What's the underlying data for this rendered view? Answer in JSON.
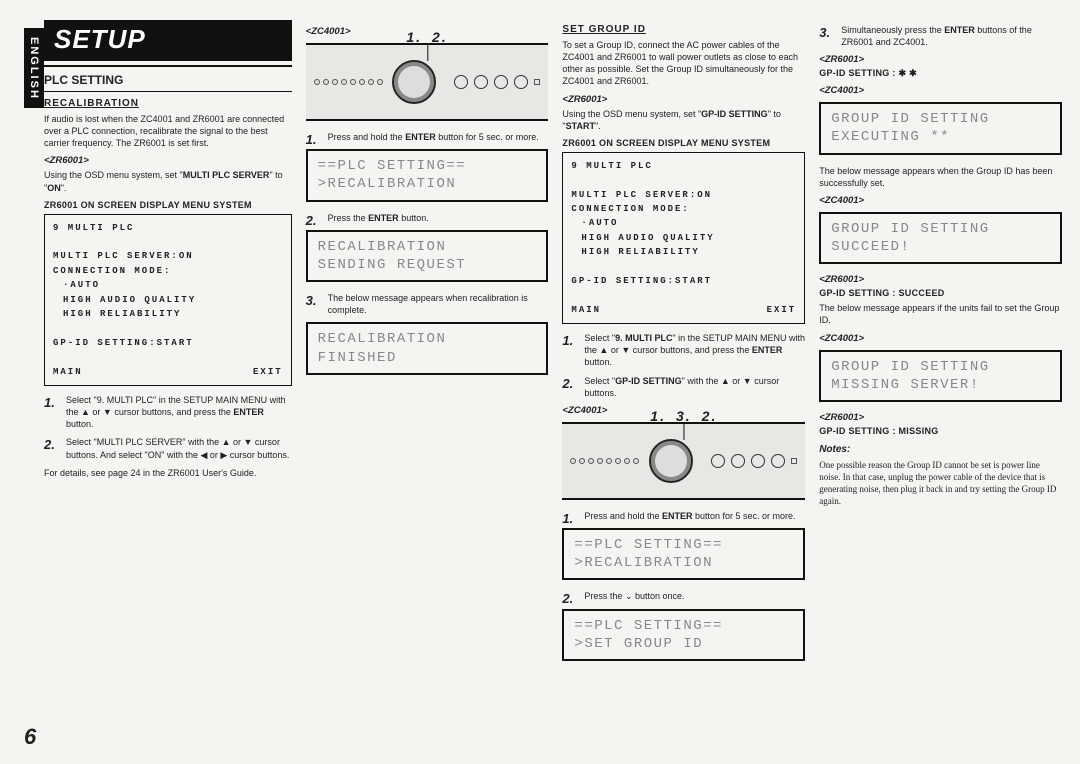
{
  "language_tab": "ENGLISH",
  "banner": "SETUP",
  "page_number": "6",
  "col1": {
    "section": "PLC SETTING",
    "sub": "RECALIBRATION",
    "intro": "If audio is lost when the ZC4001 and ZR6001 are connected over a PLC connection, recalibrate the signal to the best carrier frequency.\nThe ZR6001 is set first.",
    "model": "<ZR6001>",
    "model_line": "Using the OSD menu system, set \"MULTI PLC SERVER\" to \"ON\".",
    "osd_title": "ZR6001 ON SCREEN DISPLAY MENU SYSTEM",
    "osd": {
      "l1": "9 MULTI PLC",
      "l2": "MULTI PLC SERVER:ON",
      "l3": "CONNECTION MODE:",
      "l4": "·AUTO",
      "l5": "HIGH AUDIO QUALITY",
      "l6": "HIGH RELIABILITY",
      "l7": "GP-ID SETTING:START",
      "l8a": "MAIN",
      "l8b": "EXIT"
    },
    "step1": "Select \"9. MULTI PLC\" in the SETUP MAIN MENU with the ▲ or ▼ cursor buttons, and press the ENTER button.",
    "step2": "Select \"MULTI PLC SERVER\" with the ▲ or ▼ cursor buttons. And select \"ON\" with the ◀ or ▶ cursor buttons.",
    "footer": "For details, see page 24 in the ZR6001 User's Guide."
  },
  "col2": {
    "model": "<ZC4001>",
    "callouts": [
      "1.",
      "2."
    ],
    "step1": "Press and hold the ENTER button for 5 sec. or more.",
    "lcd1a": "==PLC SETTING==",
    "lcd1b": ">RECALIBRATION",
    "step2": "Press the ENTER button.",
    "lcd2a": "RECALIBRATION",
    "lcd2b": "SENDING REQUEST",
    "step3": "The below message appears when recalibration is complete.",
    "lcd3a": "RECALIBRATION",
    "lcd3b": "FINISHED"
  },
  "col3": {
    "sub": "SET GROUP ID",
    "intro": "To set a Group ID, connect the AC power cables of the ZC4001 and ZR6001 to wall power outlets as close to each other as possible.\nSet the Group ID simultaneously for the ZC4001 and ZR6001.",
    "model1": "<ZR6001>",
    "model1_line": "Using the OSD menu system, set \"GP-ID SETTING\" to \"START\".",
    "osd_title": "ZR6001 ON SCREEN DISPLAY MENU SYSTEM",
    "osd": {
      "l1": "9 MULTI PLC",
      "l2": "MULTI PLC SERVER:ON",
      "l3": "CONNECTION MODE:",
      "l4": "·AUTO",
      "l5": "HIGH AUDIO QUALITY",
      "l6": "HIGH RELIABILITY",
      "l7": "GP-ID SETTING:START",
      "l8a": "MAIN",
      "l8b": "EXIT"
    },
    "stepA1": "Select \"9. MULTI PLC\" in the SETUP MAIN MENU with the ▲ or ▼ cursor buttons, and press the ENTER button.",
    "stepA2": "Select \"GP-ID SETTING\" with the ▲ or ▼ cursor buttons.",
    "model2": "<ZC4001>",
    "callouts": [
      "1.",
      "3.",
      "2."
    ],
    "stepB1": "Press and hold the ENTER button for 5 sec. or more.",
    "lcdB1a": "==PLC SETTING==",
    "lcdB1b": ">RECALIBRATION",
    "stepB2": "Press the ⌄ button once.",
    "lcdB2a": "==PLC SETTING==",
    "lcdB2b": ">SET GROUP ID"
  },
  "col4": {
    "step3": "Simultaneously press the ENTER buttons of the ZR6001 and ZC4001.",
    "m1": "<ZR6001>",
    "m1_line": "GP-ID SETTING : ✱ ✱",
    "m2": "<ZC4001>",
    "lcd1a": "GROUP ID SETTING",
    "lcd1b": "EXECUTING **",
    "succ_intro": "The below message appears when the Group ID has been successfully set.",
    "m3": "<ZC4001>",
    "lcd2a": "GROUP ID SETTING",
    "lcd2b": "SUCCEED!",
    "m4": "<ZR6001>",
    "m4_line": "GP-ID SETTING : SUCCEED",
    "fail_intro": "The below message appears if the units fail to set the Group ID.",
    "m5": "<ZC4001>",
    "lcd3a": "GROUP ID SETTING",
    "lcd3b": "MISSING SERVER!",
    "m6": "<ZR6001>",
    "m6_line": "GP-ID SETTING : MISSING",
    "notes_head": "Notes:",
    "notes": "One possible reason the Group ID cannot be set is power line noise. In that case, unplug the power cable of the device that is generating noise, then plug it back in and try setting the Group ID again."
  }
}
